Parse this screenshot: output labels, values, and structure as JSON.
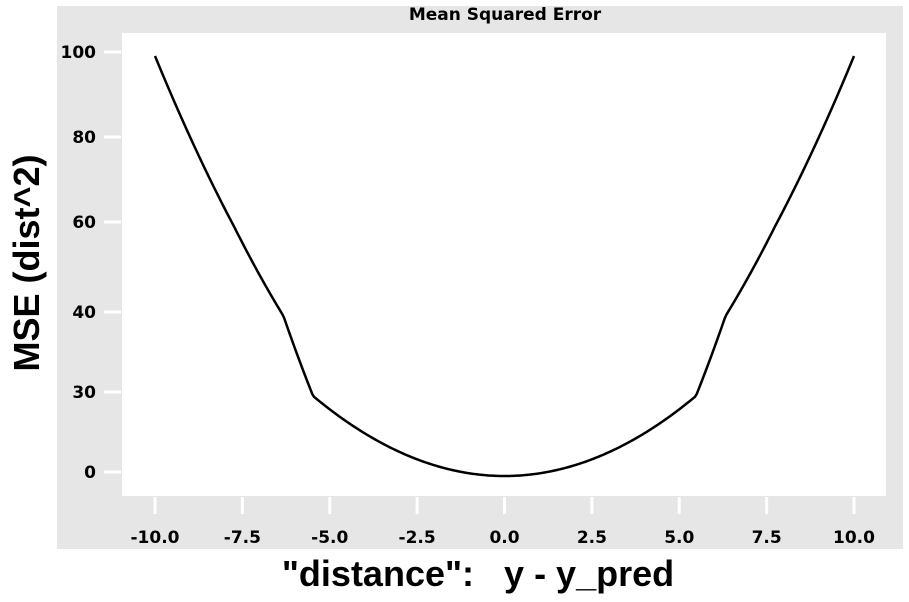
{
  "chart_data": {
    "type": "line",
    "title": "Mean Squared Error",
    "xlabel": "\"distance\":   y - y_pred",
    "ylabel": "MSE (dist^2)",
    "xlim": [
      -10,
      10
    ],
    "x_ticks": [
      "-10.0",
      "-7.5",
      "-5.0",
      "-2.5",
      "0.0",
      "2.5",
      "5.0",
      "7.5",
      "10.0"
    ],
    "x_tick_values": [
      -10,
      -7.5,
      -5,
      -2.5,
      0,
      2.5,
      5,
      7.5,
      10
    ],
    "y_ticks": [
      "0",
      "30",
      "40",
      "60",
      "80",
      "100"
    ],
    "y_tick_values": [
      0,
      30,
      40,
      60,
      80,
      100
    ],
    "grid": false,
    "series": [
      {
        "color": "#000000",
        "x": [
          -10,
          -9,
          -8,
          -7,
          -6,
          -5,
          -4,
          -3,
          -2,
          -1,
          0,
          1,
          2,
          3,
          4,
          5,
          6,
          7,
          8,
          9,
          10
        ],
        "y": [
          100,
          81,
          64,
          49,
          36,
          25,
          16,
          9,
          4,
          1,
          0,
          1,
          4,
          9,
          16,
          25,
          36,
          49,
          64,
          81,
          100
        ]
      }
    ]
  }
}
